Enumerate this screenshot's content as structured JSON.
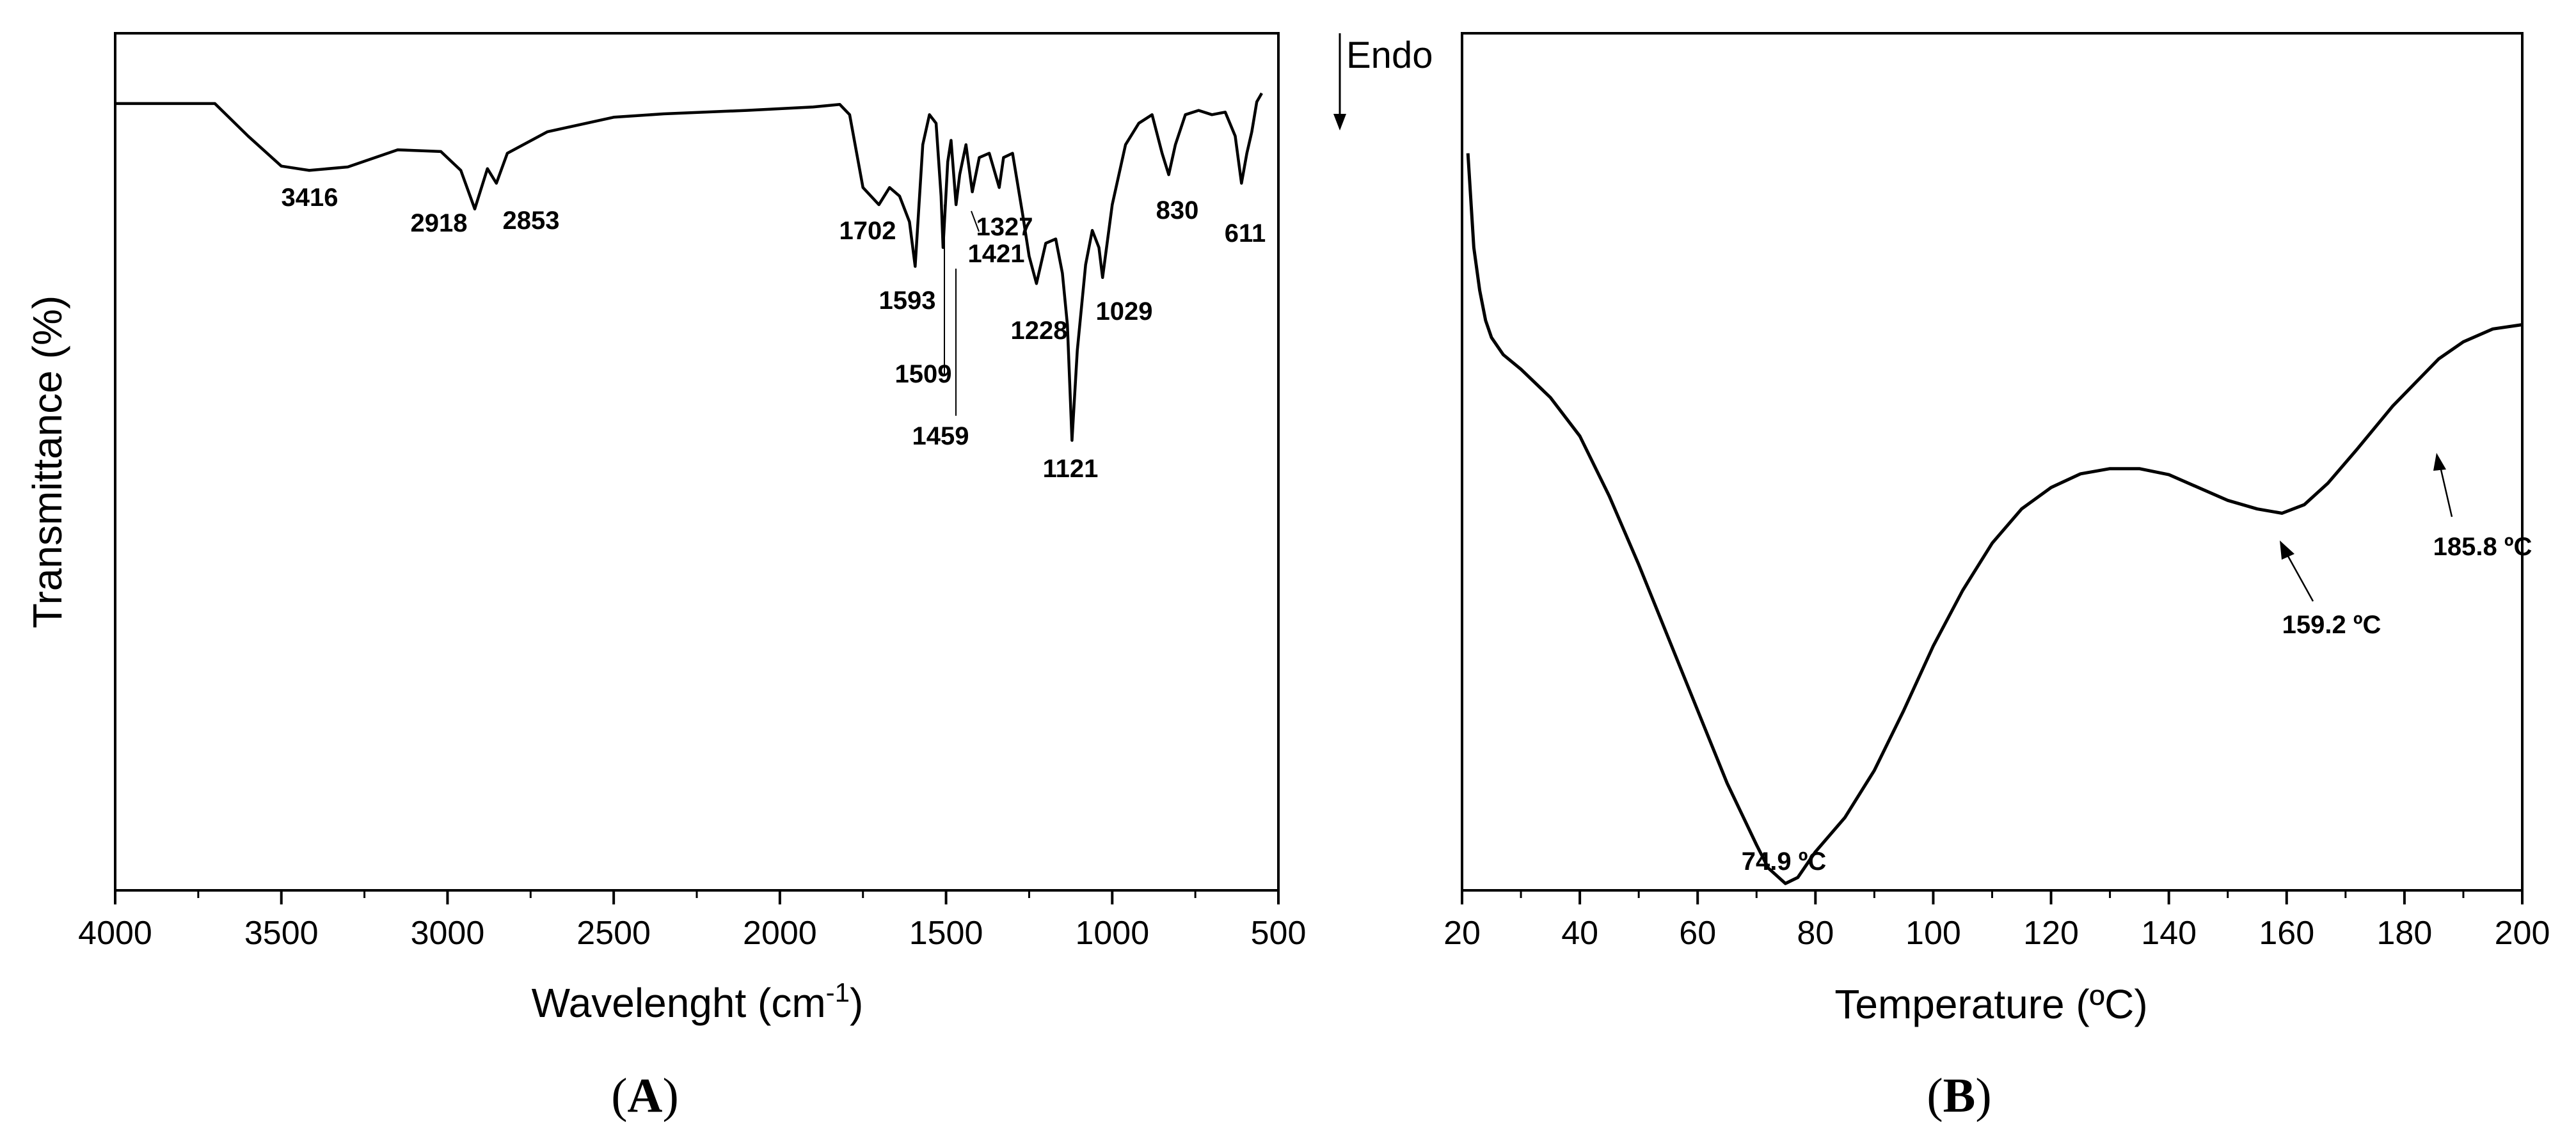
{
  "chart_data": [
    {
      "type": "line",
      "panel_label_open": "(",
      "panel_label": "A",
      "panel_label_close": ")",
      "title": "",
      "xlabel": "Wavelenght (cm",
      "xlabel_sup": "-1",
      "xlabel_close": ")",
      "ylabel": "Transmittance (%)",
      "xlim": [
        4000,
        500
      ],
      "x_reversed": true,
      "ylim": [
        0,
        100
      ],
      "y_ticks_shown": false,
      "grid": false,
      "x_ticks": [
        "4000",
        "3500",
        "3000",
        "2500",
        "2000",
        "1500",
        "1000",
        "500"
      ],
      "series": [
        {
          "x": [
            4000,
            3700,
            3600,
            3500,
            3450,
            3416,
            3300,
            3150,
            3020,
            2960,
            2918,
            2880,
            2853,
            2820,
            2700,
            2500,
            2350,
            2100,
            1900,
            1820,
            1790,
            1750,
            1702,
            1670,
            1640,
            1610,
            1593,
            1570,
            1550,
            1530,
            1515,
            1509,
            1495,
            1485,
            1470,
            1459,
            1440,
            1421,
            1400,
            1370,
            1340,
            1327,
            1300,
            1270,
            1250,
            1228,
            1200,
            1170,
            1150,
            1135,
            1121,
            1105,
            1080,
            1060,
            1040,
            1029,
            1000,
            960,
            920,
            880,
            850,
            830,
            810,
            780,
            740,
            700,
            660,
            630,
            611,
            595,
            580,
            565,
            550
          ],
          "y": [
            91.8,
            91.8,
            88,
            84.5,
            84.2,
            84.0,
            84.4,
            86.4,
            86.2,
            84,
            79.5,
            84.2,
            82.5,
            86,
            88.5,
            90.2,
            90.6,
            91.0,
            91.4,
            91.7,
            90.5,
            82,
            80,
            82,
            81,
            78,
            72.8,
            87,
            90.5,
            89.5,
            81,
            75.0,
            85,
            87.5,
            80,
            83.5,
            87,
            81.5,
            85.5,
            86,
            82,
            85.5,
            86,
            79,
            74,
            70.8,
            75.5,
            76,
            72,
            66,
            52.5,
            63,
            73,
            77,
            75,
            71.5,
            80,
            87,
            89.5,
            90.5,
            86,
            83.5,
            87,
            90.5,
            91.0,
            90.5,
            90.8,
            88,
            82.5,
            86,
            88.5,
            92,
            93
          ]
        }
      ],
      "annotations": [
        "3416",
        "2918",
        "2853",
        "1702",
        "1593",
        "1509",
        "1459",
        "1421",
        "1327",
        "1228",
        "1121",
        "1029",
        "830",
        "611"
      ]
    },
    {
      "type": "line",
      "panel_label_open": "(",
      "panel_label": "B",
      "panel_label_close": ")",
      "title": "",
      "xlabel": "Temperature (ºC)",
      "ylabel": "",
      "endo_label": "Endo",
      "xlim": [
        20,
        200
      ],
      "ylim": [
        0,
        100
      ],
      "y_ticks_shown": false,
      "grid": false,
      "x_ticks": [
        "20",
        "40",
        "60",
        "80",
        "100",
        "120",
        "140",
        "160",
        "180",
        "200"
      ],
      "series": [
        {
          "x": [
            21,
            22,
            23,
            24,
            25,
            27,
            30,
            35,
            40,
            45,
            50,
            55,
            60,
            65,
            70,
            72,
            74.9,
            77,
            80,
            85,
            90,
            95,
            100,
            105,
            110,
            115,
            120,
            125,
            130,
            135,
            140,
            145,
            150,
            155,
            159.2,
            163,
            167,
            172,
            178,
            185.8,
            190,
            195,
            200
          ],
          "y": [
            86,
            75,
            70,
            66.5,
            64.5,
            62.5,
            60.8,
            57.5,
            53,
            46,
            38,
            29.5,
            21,
            12.5,
            5.3,
            2.6,
            0.8,
            1.5,
            4.5,
            8.5,
            14,
            21,
            28.5,
            35,
            40.5,
            44.5,
            47,
            48.6,
            49.2,
            49.2,
            48.5,
            47,
            45.5,
            44.5,
            44.0,
            45,
            47.5,
            51.5,
            56.5,
            62,
            64,
            65.5,
            66
          ]
        }
      ],
      "annotations": [
        "74.9 ºC",
        "159.2 ºC",
        "185.8 ºC"
      ]
    }
  ]
}
